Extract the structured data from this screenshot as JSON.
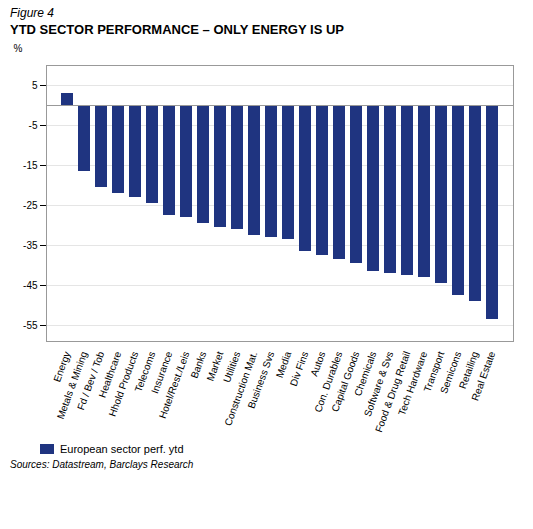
{
  "chart_data": {
    "type": "bar",
    "subtitle": "Figure 4",
    "title": "YTD SECTOR PERFORMANCE – ONLY ENERGY IS UP",
    "ylabel": "%",
    "caption": "Sources: Datastream, Barclays Research",
    "categories": [
      "Energy",
      "Metals & Mining",
      "Fd / Bev / Tob",
      "Healthcare",
      "Hhold Products",
      "Telecoms",
      "Insurance",
      "Hotel/Rest./Leis",
      "Banks",
      "Market",
      "Utilities",
      "Construction Mat.",
      "Business Svs",
      "Media",
      "Div Fins",
      "Autos",
      "Con. Durables",
      "Capital Goods",
      "Chemicals",
      "Software & Svs",
      "Food & Drug Retail",
      "Tech Hardware",
      "Transport",
      "Semicons",
      "Retailing",
      "Real Estate"
    ],
    "series": [
      {
        "name": "European sector perf. ytd",
        "color": "#1f3480",
        "values": [
          3.0,
          -16.5,
          -20.5,
          -22.0,
          -23.0,
          -24.5,
          -27.5,
          -28.0,
          -29.5,
          -30.5,
          -31.0,
          -32.5,
          -33.0,
          -33.5,
          -36.5,
          -37.5,
          -38.5,
          -39.5,
          -41.5,
          -42.0,
          -42.5,
          -43.0,
          -44.5,
          -47.5,
          -49.0,
          -53.5
        ]
      }
    ],
    "ylim": [
      -59,
      10
    ],
    "yticks": [
      5,
      -5,
      -15,
      -25,
      -35,
      -45,
      -55
    ],
    "grid": true,
    "legend": "bottom"
  }
}
